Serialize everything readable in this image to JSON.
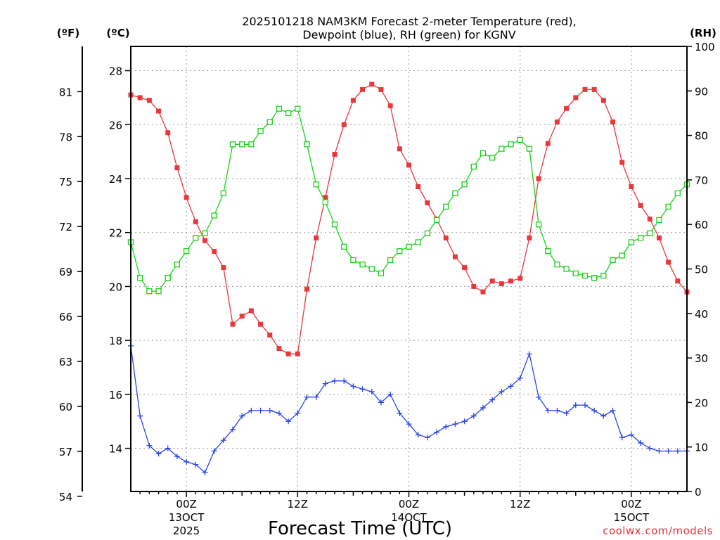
{
  "chart_data": {
    "type": "line",
    "title_line1": "2025101218 NAM3KM Forecast 2-meter Temperature (red),",
    "title_line2": "Dewpoint (blue), RH (green) for KGNV",
    "xlabel": "Forecast Time (UTC)",
    "credit": "coolwx.com/models",
    "left_unit_f": "(ºF)",
    "left_unit_c": "(ºC)",
    "right_unit": "(RH)",
    "y_c_range": [
      12.4,
      28.9
    ],
    "y_rh_range": [
      0,
      100
    ],
    "x_hours_range": [
      0,
      60
    ],
    "y_c_ticks": [
      "14",
      "16",
      "18",
      "20",
      "22",
      "24",
      "26",
      "28"
    ],
    "y_f_ticks": [
      "54",
      "57",
      "60",
      "63",
      "66",
      "69",
      "72",
      "75",
      "78",
      "81"
    ],
    "y_rh_ticks": [
      "0",
      "10",
      "20",
      "30",
      "40",
      "50",
      "60",
      "70",
      "80",
      "90",
      "100"
    ],
    "x_ticks": [
      {
        "hour": 6,
        "line1": "00Z",
        "line2": "13OCT",
        "line3": "2025"
      },
      {
        "hour": 18,
        "line1": "12Z",
        "line2": "",
        "line3": ""
      },
      {
        "hour": 30,
        "line1": "00Z",
        "line2": "14OCT",
        "line3": ""
      },
      {
        "hour": 42,
        "line1": "12Z",
        "line2": "",
        "line3": ""
      },
      {
        "hour": 54,
        "line1": "00Z",
        "line2": "15OCT",
        "line3": ""
      }
    ],
    "series": [
      {
        "name": "2-meter Temperature",
        "units": "C",
        "color": "#e8383c",
        "marker": "filled-square",
        "values": [
          27.1,
          27.0,
          26.9,
          26.5,
          25.7,
          24.4,
          23.3,
          22.4,
          21.7,
          21.3,
          20.7,
          18.6,
          18.9,
          19.1,
          18.6,
          18.2,
          17.7,
          17.5,
          17.5,
          19.9,
          21.8,
          23.3,
          24.9,
          26.0,
          26.9,
          27.3,
          27.5,
          27.3,
          26.7,
          25.1,
          24.5,
          23.7,
          23.1,
          22.5,
          21.8,
          21.1,
          20.7,
          20.0,
          19.8,
          20.2,
          20.1,
          20.2,
          20.3,
          21.8,
          24.0,
          25.3,
          26.1,
          26.6,
          27.0,
          27.3,
          27.3,
          26.9,
          26.1,
          24.6,
          23.7,
          23.0,
          22.5,
          21.8,
          20.9,
          20.2,
          19.8
        ]
      },
      {
        "name": "Dewpoint",
        "units": "C",
        "color": "#2b45e8",
        "marker": "plus",
        "values": [
          17.8,
          15.2,
          14.1,
          13.8,
          14.0,
          13.7,
          13.5,
          13.4,
          13.1,
          13.9,
          14.3,
          14.7,
          15.2,
          15.4,
          15.4,
          15.4,
          15.3,
          15.0,
          15.3,
          15.9,
          15.9,
          16.4,
          16.5,
          16.5,
          16.3,
          16.2,
          16.1,
          15.7,
          16.0,
          15.3,
          14.9,
          14.5,
          14.4,
          14.6,
          14.8,
          14.9,
          15.0,
          15.2,
          15.5,
          15.8,
          16.1,
          16.3,
          16.6,
          17.5,
          15.9,
          15.4,
          15.4,
          15.3,
          15.6,
          15.6,
          15.4,
          15.2,
          15.4,
          14.4,
          14.5,
          14.2,
          14.0,
          13.9,
          13.9,
          13.9,
          13.9
        ]
      },
      {
        "name": "RH",
        "units": "%",
        "color": "#19d219",
        "marker": "open-square",
        "values": [
          56,
          48,
          45,
          45,
          48,
          51,
          54,
          57,
          58,
          62,
          67,
          78,
          78,
          78,
          81,
          83,
          86,
          85,
          86,
          78,
          69,
          65,
          60,
          55,
          52,
          51,
          50,
          49,
          52,
          54,
          55,
          56,
          58,
          61,
          64,
          67,
          69,
          73,
          76,
          75,
          77,
          78,
          79,
          77,
          60,
          54,
          51,
          50,
          49,
          48.5,
          48,
          48.5,
          52,
          53,
          56,
          57,
          58,
          61,
          64,
          67,
          69
        ]
      }
    ]
  }
}
